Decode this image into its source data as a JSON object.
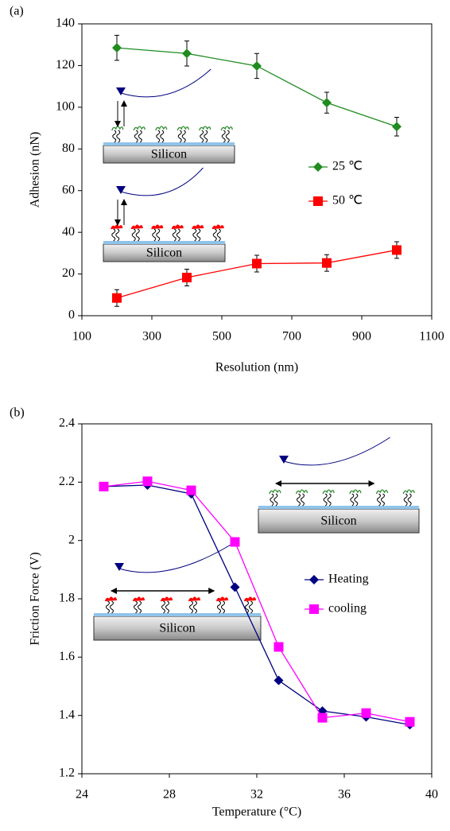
{
  "chart_data": [
    {
      "type": "line",
      "panel_label": "(a)",
      "x_label": "Resolution (nm)",
      "y_label": "Adhesion (nN)",
      "x": [
        200,
        400,
        600,
        800,
        1000
      ],
      "series": [
        {
          "name": "25 ℃",
          "color": "#1f8c1f",
          "marker": "diamond",
          "values": [
            128.5,
            125.8,
            119.8,
            102.2,
            90.7
          ],
          "errors": [
            6,
            6,
            6,
            5,
            4.5
          ]
        },
        {
          "name": "50 ℃",
          "color": "#ff0000",
          "marker": "square",
          "values": [
            8.5,
            18.3,
            25,
            25.3,
            31.5
          ],
          "errors": [
            4,
            4,
            4,
            4,
            4
          ]
        }
      ],
      "xlim": [
        100,
        1100
      ],
      "xticks": [
        100,
        300,
        500,
        700,
        900,
        1100
      ],
      "ylim": [
        0,
        140
      ],
      "yticks": [
        0,
        20,
        40,
        60,
        80,
        100,
        120,
        140
      ],
      "grid": false,
      "legend": "center right",
      "insets": [
        {
          "label": "Silicon",
          "heads": "#2e8b2e"
        },
        {
          "label": "Silicon",
          "heads": "#ff0000"
        }
      ]
    },
    {
      "type": "line",
      "panel_label": "(b)",
      "x_label": "Temperature (°C)",
      "y_label": "Friction Force (V)",
      "x": [
        25,
        27,
        29,
        31,
        33,
        35,
        37,
        39
      ],
      "series": [
        {
          "name": "Heating",
          "color": "#000080",
          "marker": "diamond",
          "values": [
            2.185,
            2.19,
            2.16,
            1.84,
            1.52,
            1.415,
            1.395,
            1.368
          ]
        },
        {
          "name": "cooling",
          "color": "#ff00ff",
          "marker": "square",
          "values": [
            2.185,
            2.203,
            2.172,
            1.995,
            1.635,
            1.392,
            1.408,
            1.378
          ]
        }
      ],
      "xlim": [
        24,
        40
      ],
      "xticks": [
        24,
        28,
        32,
        36,
        40
      ],
      "ylim": [
        1.2,
        2.4
      ],
      "yticks": [
        1.2,
        1.4,
        1.6,
        1.8,
        2,
        2.2,
        2.4
      ],
      "grid": false,
      "legend": "center right",
      "insets": [
        {
          "label": "Silicon",
          "heads": "#2e8b2e"
        },
        {
          "label": "Silicon",
          "heads": "#ff0000"
        }
      ]
    }
  ]
}
